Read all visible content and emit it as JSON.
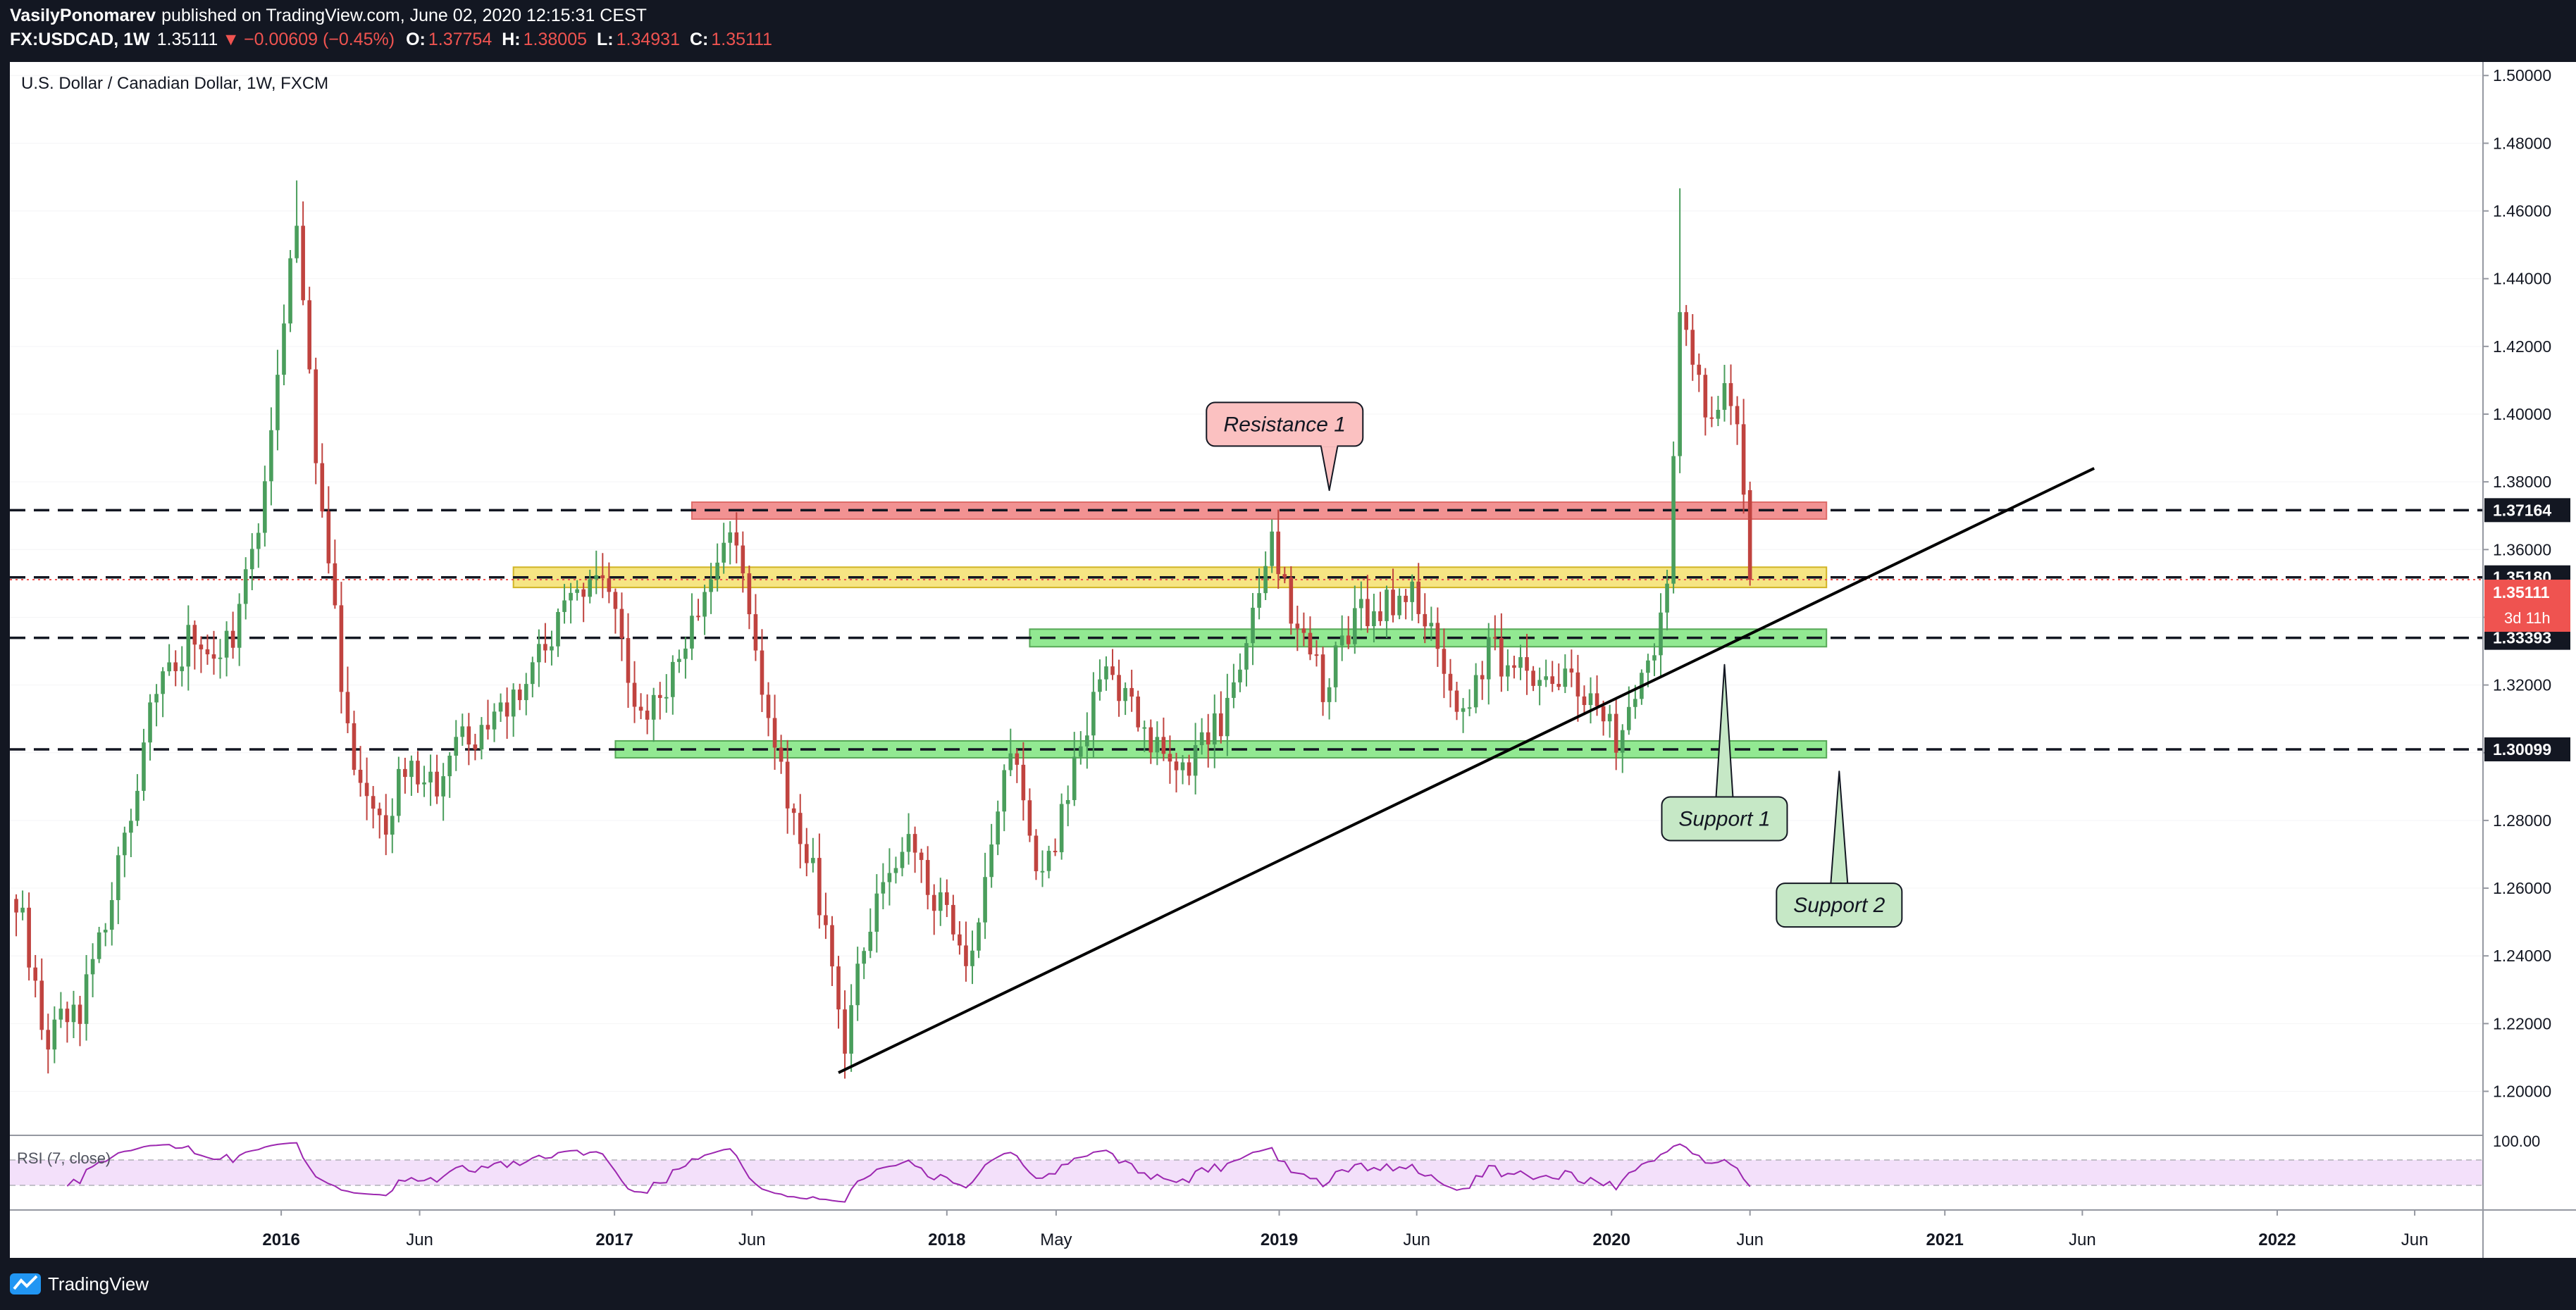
{
  "header": {
    "publisher": "VasilyPonomarev",
    "published_text": "published on TradingView.com, June 02, 2020 12:15:31 CEST",
    "symbol": "FX:USDCAD, 1W",
    "last_price": "1.35111",
    "change": "−0.00609 (−0.45%)",
    "ohlc": [
      {
        "k": "O:",
        "v": "1.37754"
      },
      {
        "k": "H:",
        "v": "1.38005"
      },
      {
        "k": "L:",
        "v": "1.34931"
      },
      {
        "k": "C:",
        "v": "1.35111"
      }
    ]
  },
  "chart_title": "U.S. Dollar / Canadian Dollar, 1W, FXCM",
  "footer_brand": "TradingView",
  "colors": {
    "bull": "#4a9e5c",
    "bear": "#c0433f",
    "background": "#131722",
    "resistance_zone": "#f08080",
    "support_zone": "#7fe67f",
    "pivot_zone": "#f5e16e",
    "rsi_line": "#9c27b0",
    "rsi_band": "#f3e0fa"
  },
  "chart_data": {
    "type": "candlestick",
    "interval": "1W",
    "ylim": [
      1.187,
      1.504
    ],
    "x_range": [
      "2015-03-09",
      "2022-08-15"
    ],
    "y_ticks": [
      "1.20000",
      "1.22000",
      "1.24000",
      "1.26000",
      "1.28000",
      "1.30000",
      "1.32000",
      "1.34000",
      "1.36000",
      "1.38000",
      "1.40000",
      "1.42000",
      "1.44000",
      "1.46000",
      "1.48000",
      "1.50000"
    ],
    "x_ticks": [
      {
        "date": "2016-01-01",
        "label": "2016",
        "bold": true
      },
      {
        "date": "2016-06-01",
        "label": "Jun",
        "bold": false
      },
      {
        "date": "2017-01-01",
        "label": "2017",
        "bold": true
      },
      {
        "date": "2017-06-01",
        "label": "Jun",
        "bold": false
      },
      {
        "date": "2018-01-01",
        "label": "2018",
        "bold": true
      },
      {
        "date": "2018-05-01",
        "label": "May",
        "bold": false
      },
      {
        "date": "2019-01-01",
        "label": "2019",
        "bold": true
      },
      {
        "date": "2019-06-01",
        "label": "Jun",
        "bold": false
      },
      {
        "date": "2020-01-01",
        "label": "2020",
        "bold": true
      },
      {
        "date": "2020-06-01",
        "label": "Jun",
        "bold": false
      },
      {
        "date": "2021-01-01",
        "label": "2021",
        "bold": true
      },
      {
        "date": "2021-06-01",
        "label": "Jun",
        "bold": false
      },
      {
        "date": "2022-01-01",
        "label": "2022",
        "bold": true
      },
      {
        "date": "2022-06-01",
        "label": "Jun",
        "bold": false
      }
    ],
    "anchors": [
      [
        "2015-03-16",
        1.258
      ],
      [
        "2015-04-20",
        1.215
      ],
      [
        "2015-05-25",
        1.225
      ],
      [
        "2015-06-29",
        1.255
      ],
      [
        "2015-08-17",
        1.32
      ],
      [
        "2015-09-28",
        1.335
      ],
      [
        "2015-11-09",
        1.33
      ],
      [
        "2015-12-14",
        1.38
      ],
      [
        "2016-01-18",
        1.46
      ],
      [
        "2016-02-08",
        1.39
      ],
      [
        "2016-03-14",
        1.305
      ],
      [
        "2016-04-25",
        1.275
      ],
      [
        "2016-05-09",
        1.295
      ],
      [
        "2016-06-13",
        1.29
      ],
      [
        "2016-07-25",
        1.305
      ],
      [
        "2016-08-29",
        1.31
      ],
      [
        "2016-09-26",
        1.32
      ],
      [
        "2016-11-07",
        1.345
      ],
      [
        "2016-12-26",
        1.35
      ],
      [
        "2017-01-23",
        1.31
      ],
      [
        "2017-02-20",
        1.315
      ],
      [
        "2017-03-27",
        1.335
      ],
      [
        "2017-05-01",
        1.365
      ],
      [
        "2017-05-15",
        1.36
      ],
      [
        "2017-06-26",
        1.3
      ],
      [
        "2017-08-07",
        1.265
      ],
      [
        "2017-09-11",
        1.215
      ],
      [
        "2017-10-09",
        1.25
      ],
      [
        "2017-11-13",
        1.275
      ],
      [
        "2017-12-25",
        1.255
      ],
      [
        "2018-01-22",
        1.235
      ],
      [
        "2018-03-12",
        1.305
      ],
      [
        "2018-04-16",
        1.26
      ],
      [
        "2018-05-28",
        1.3
      ],
      [
        "2018-06-25",
        1.325
      ],
      [
        "2018-08-06",
        1.305
      ],
      [
        "2018-09-24",
        1.295
      ],
      [
        "2018-10-29",
        1.31
      ],
      [
        "2018-12-24",
        1.36
      ],
      [
        "2019-01-21",
        1.335
      ],
      [
        "2019-02-18",
        1.32
      ],
      [
        "2019-03-25",
        1.34
      ],
      [
        "2019-05-13",
        1.345
      ],
      [
        "2019-05-27",
        1.35
      ],
      [
        "2019-07-15",
        1.31
      ],
      [
        "2019-08-19",
        1.33
      ],
      [
        "2019-09-16",
        1.325
      ],
      [
        "2019-10-21",
        1.32
      ],
      [
        "2019-11-25",
        1.32
      ],
      [
        "2019-12-23",
        1.31
      ],
      [
        "2020-01-13",
        1.303
      ],
      [
        "2020-02-17",
        1.33
      ],
      [
        "2020-03-02",
        1.345
      ],
      [
        "2020-03-16",
        1.43
      ],
      [
        "2020-03-30",
        1.42
      ],
      [
        "2020-04-13",
        1.395
      ],
      [
        "2020-05-04",
        1.405
      ],
      [
        "2020-05-18",
        1.395
      ],
      [
        "2020-05-25",
        1.379
      ],
      [
        "2020-06-01",
        1.351
      ]
    ],
    "last_candle": {
      "date": "2020-06-01",
      "open": 1.37754,
      "high": 1.38005,
      "low": 1.34931,
      "close": 1.35111
    },
    "rsi": {
      "label": "RSI (7, close)",
      "tick": "100.00",
      "upper": 70,
      "lower": 30
    },
    "horizontal_levels": [
      {
        "value": 1.37164,
        "label": "1.37164"
      },
      {
        "value": 1.3518,
        "label": "1.35180"
      },
      {
        "value": 1.33393,
        "label": "1.33393"
      },
      {
        "value": 1.30099,
        "label": "1.30099"
      }
    ],
    "price_tag": {
      "value": 1.35111,
      "label": "1.35111",
      "countdown": "3d 11h"
    },
    "zones": [
      {
        "kind": "resistance",
        "from": "2017-03-27",
        "to": "2020-08-24",
        "low": 1.369,
        "high": 1.374
      },
      {
        "kind": "pivot",
        "from": "2016-09-12",
        "to": "2020-08-24",
        "low": 1.3488,
        "high": 1.3548
      },
      {
        "kind": "support",
        "from": "2018-04-02",
        "to": "2020-08-24",
        "low": 1.3313,
        "high": 1.3365
      },
      {
        "kind": "support",
        "from": "2017-01-02",
        "to": "2020-08-24",
        "low": 1.2985,
        "high": 1.3035
      }
    ],
    "trendline": {
      "from": [
        "2017-09-04",
        1.2055
      ],
      "to": [
        "2021-06-14",
        1.384
      ]
    },
    "callouts": [
      {
        "text": "Resistance 1",
        "date": "2019-01-07",
        "value": 1.397,
        "pointer": [
          "2019-02-25",
          1.3775
        ]
      },
      {
        "text": "Support 1",
        "date": "2020-05-04",
        "value": 1.2805,
        "pointer": [
          "2020-05-04",
          1.326
        ]
      },
      {
        "text": "Support 2",
        "date": "2020-09-07",
        "value": 1.255,
        "pointer": [
          "2020-09-07",
          1.2945
        ]
      }
    ]
  }
}
